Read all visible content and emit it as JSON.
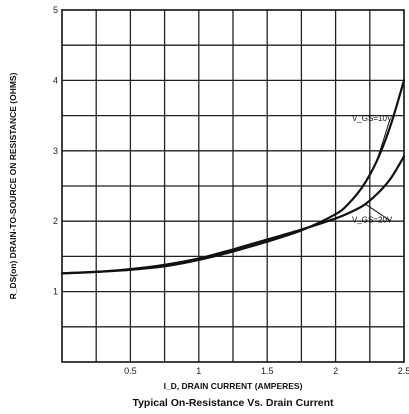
{
  "chart_data": {
    "type": "line",
    "title": "Typical On-Resistance Vs. Drain Current",
    "xlabel": "I_D, DRAIN CURRENT (AMPERES)",
    "ylabel": "R_DS(on) DRAIN-TO-SOURCE ON RESISTANCE (OHMS)",
    "xlim": [
      0,
      2.5
    ],
    "ylim": [
      0,
      5
    ],
    "x_ticks": [
      {
        "value": 0.5,
        "label": "0.5"
      },
      {
        "value": 1.0,
        "label": "1"
      },
      {
        "value": 1.5,
        "label": "1.5"
      },
      {
        "value": 2.0,
        "label": "2"
      },
      {
        "value": 2.5,
        "label": "2.5"
      }
    ],
    "y_ticks": [
      {
        "value": 1,
        "label": "1"
      },
      {
        "value": 2,
        "label": "2"
      },
      {
        "value": 3,
        "label": "3"
      },
      {
        "value": 4,
        "label": "4"
      },
      {
        "value": 5,
        "label": "5"
      }
    ],
    "grid": true,
    "series": [
      {
        "name": "V_GS=10V",
        "x": [
          0,
          0.25,
          0.5,
          0.75,
          1.0,
          1.25,
          1.5,
          1.75,
          2.0,
          2.1,
          2.2,
          2.3,
          2.4,
          2.5
        ],
        "y": [
          1.26,
          1.28,
          1.31,
          1.36,
          1.45,
          1.57,
          1.71,
          1.87,
          2.1,
          2.26,
          2.5,
          2.85,
          3.35,
          4.0
        ]
      },
      {
        "name": "V_GS=20V",
        "x": [
          0,
          0.25,
          0.5,
          0.75,
          1.0,
          1.25,
          1.5,
          1.75,
          2.0,
          2.1,
          2.2,
          2.3,
          2.4,
          2.5
        ],
        "y": [
          1.26,
          1.28,
          1.32,
          1.38,
          1.47,
          1.6,
          1.74,
          1.88,
          2.04,
          2.12,
          2.22,
          2.38,
          2.6,
          2.92
        ]
      }
    ],
    "annotations": [
      {
        "series": 0,
        "text": "V_GS=10V"
      },
      {
        "series": 1,
        "text": "V_GS=20V"
      }
    ]
  }
}
